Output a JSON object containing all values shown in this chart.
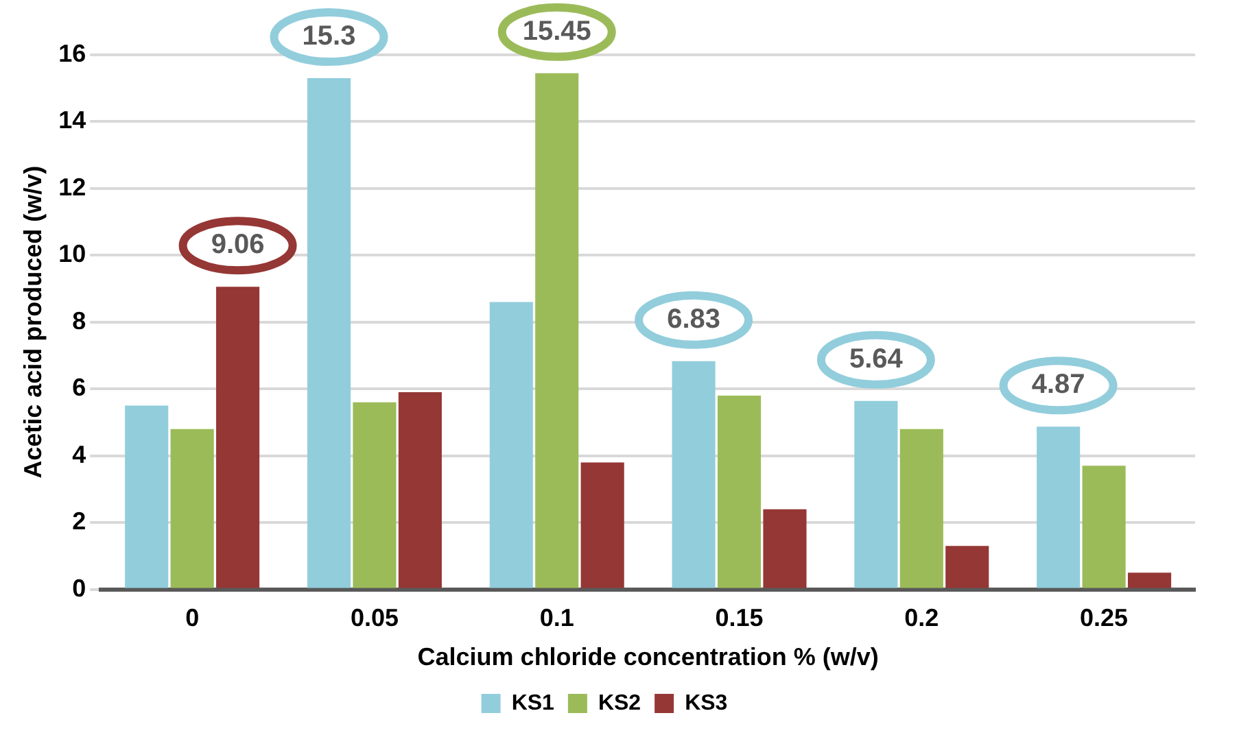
{
  "chart_data": {
    "type": "bar",
    "xlabel": "Calcium chloride concentration % (w/v)",
    "ylabel": "Acetic acid produced (w/v)",
    "categories": [
      "0",
      "0.05",
      "0.1",
      "0.15",
      "0.2",
      "0.25"
    ],
    "series": [
      {
        "name": "KS1",
        "color": "#92cddc",
        "values": [
          5.5,
          15.3,
          8.6,
          6.83,
          5.64,
          4.87
        ],
        "value_labels": [
          null,
          "15.3",
          null,
          "6.83",
          "5.64",
          "4.87"
        ]
      },
      {
        "name": "KS2",
        "color": "#9bbb59",
        "values": [
          4.8,
          5.6,
          15.45,
          5.8,
          4.8,
          3.7
        ],
        "value_labels": [
          null,
          null,
          "15.45",
          null,
          null,
          null
        ]
      },
      {
        "name": "KS3",
        "color": "#953735",
        "values": [
          9.06,
          5.9,
          3.8,
          2.4,
          1.3,
          0.5
        ],
        "value_labels": [
          "9.06",
          null,
          null,
          null,
          null,
          null
        ]
      }
    ],
    "ylim": [
      0,
      16
    ],
    "yticks": [
      0,
      2,
      4,
      6,
      8,
      10,
      12,
      14,
      16
    ],
    "grid": "y",
    "legend": "bottom"
  }
}
